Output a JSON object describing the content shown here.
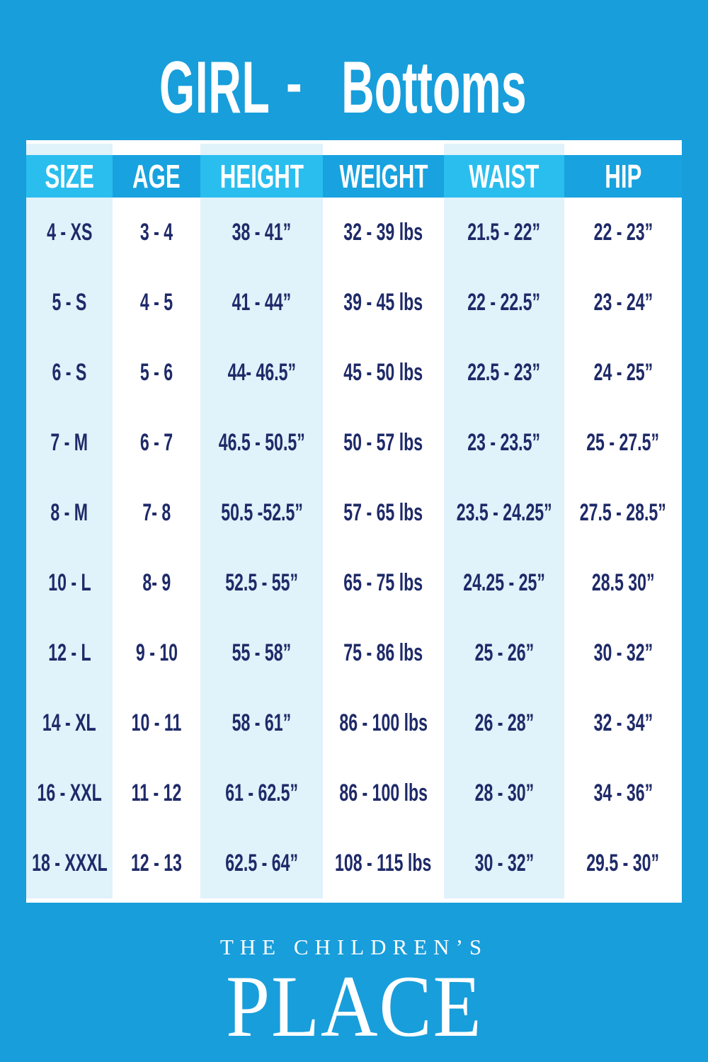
{
  "title": {
    "brand": "GIRL",
    "dash": "-",
    "category": "Bottoms"
  },
  "chart_data": {
    "type": "table",
    "title": "GIRL - Bottoms",
    "columns": [
      "SIZE",
      "AGE",
      "HEIGHT",
      "WEIGHT",
      "WAIST",
      "HIP"
    ],
    "rows": [
      [
        "4 - XS",
        "3 - 4",
        "38 - 41”",
        "32 - 39 lbs",
        "21.5 - 22”",
        "22 - 23”"
      ],
      [
        "5 - S",
        "4 - 5",
        "41 - 44”",
        "39 - 45 lbs",
        "22 - 22.5”",
        "23 - 24”"
      ],
      [
        "6 - S",
        "5 - 6",
        "44- 46.5”",
        "45 - 50 lbs",
        "22.5 - 23”",
        "24 - 25”"
      ],
      [
        "7 - M",
        "6 - 7",
        "46.5 - 50.5”",
        "50 - 57 lbs",
        "23 - 23.5”",
        "25 - 27.5”"
      ],
      [
        "8 - M",
        "7- 8",
        "50.5 -52.5”",
        "57 - 65 lbs",
        "23.5 - 24.25”",
        "27.5 - 28.5”"
      ],
      [
        "10 - L",
        "8- 9",
        "52.5 - 55”",
        "65 - 75 lbs",
        "24.25 - 25”",
        "28.5 30”"
      ],
      [
        "12 - L",
        "9 - 10",
        "55 - 58”",
        "75 - 86 lbs",
        "25 - 26”",
        "30 - 32”"
      ],
      [
        "14 - XL",
        "10 - 11",
        "58 - 61”",
        "86 - 100 lbs",
        "26 - 28”",
        "32 - 34”"
      ],
      [
        "16 - XXL",
        "11 - 12",
        "61 - 62.5”",
        "86 - 100 lbs",
        "28 - 30”",
        "34 - 36”"
      ],
      [
        "18 - XXXL",
        "12 - 13",
        "62.5 - 64”",
        "108 - 115 lbs",
        "30 - 32”",
        "29.5 - 30”"
      ]
    ]
  },
  "footer": {
    "brand_line1": "THE CHILDREN’S",
    "brand_line2": "PLACE"
  },
  "colors": {
    "page_bg": "#189EDB",
    "header_light": "#2ABEEF",
    "header_dark": "#18A2DF",
    "column_tint": "#E0F2FA",
    "column_white": "#FFFFFF",
    "cell_text": "#1E2A68",
    "header_text": "#FFFFFF"
  }
}
